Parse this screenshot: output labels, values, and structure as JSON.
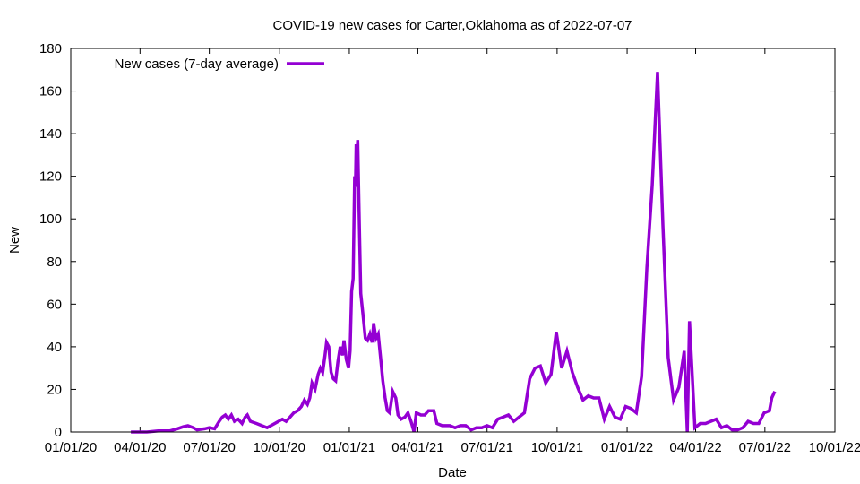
{
  "chart_data": {
    "type": "line",
    "title": "COVID-19 new cases for Carter,Oklahoma as of 2022-07-07",
    "xlabel": "Date",
    "ylabel": "New",
    "xlim": [
      "2020-01-01",
      "2022-10-01"
    ],
    "ylim": [
      0,
      180
    ],
    "x_ticks": [
      "01/01/20",
      "04/01/20",
      "07/01/20",
      "10/01/20",
      "01/01/21",
      "04/01/21",
      "07/01/21",
      "10/01/21",
      "01/01/22",
      "04/01/22",
      "07/01/22",
      "10/01/22"
    ],
    "y_ticks": [
      0,
      20,
      40,
      60,
      80,
      100,
      120,
      140,
      160,
      180
    ],
    "grid": false,
    "legend_position": "top-left",
    "series": [
      {
        "name": "New cases (7-day average)",
        "color": "#9400d3",
        "points": [
          [
            "2020-03-20",
            0
          ],
          [
            "2020-04-10",
            0
          ],
          [
            "2020-04-25",
            0.5
          ],
          [
            "2020-05-10",
            0.5
          ],
          [
            "2020-05-20",
            1.5
          ],
          [
            "2020-05-28",
            2.5
          ],
          [
            "2020-06-03",
            3
          ],
          [
            "2020-06-10",
            2
          ],
          [
            "2020-06-15",
            1
          ],
          [
            "2020-06-25",
            1.5
          ],
          [
            "2020-07-01",
            2
          ],
          [
            "2020-07-08",
            1.5
          ],
          [
            "2020-07-14",
            5
          ],
          [
            "2020-07-18",
            7
          ],
          [
            "2020-07-22",
            8
          ],
          [
            "2020-07-26",
            6
          ],
          [
            "2020-07-30",
            8
          ],
          [
            "2020-08-03",
            5
          ],
          [
            "2020-08-08",
            6
          ],
          [
            "2020-08-13",
            4
          ],
          [
            "2020-08-17",
            7
          ],
          [
            "2020-08-20",
            8
          ],
          [
            "2020-08-24",
            5
          ],
          [
            "2020-09-01",
            4
          ],
          [
            "2020-09-08",
            3
          ],
          [
            "2020-09-15",
            2
          ],
          [
            "2020-09-20",
            3
          ],
          [
            "2020-09-25",
            4
          ],
          [
            "2020-09-30",
            5
          ],
          [
            "2020-10-05",
            6
          ],
          [
            "2020-10-10",
            5
          ],
          [
            "2020-10-15",
            7
          ],
          [
            "2020-10-20",
            9
          ],
          [
            "2020-10-25",
            10
          ],
          [
            "2020-10-30",
            12
          ],
          [
            "2020-11-03",
            15
          ],
          [
            "2020-11-07",
            13
          ],
          [
            "2020-11-10",
            16
          ],
          [
            "2020-11-13",
            23
          ],
          [
            "2020-11-17",
            20
          ],
          [
            "2020-11-21",
            27
          ],
          [
            "2020-11-24",
            30
          ],
          [
            "2020-11-27",
            28
          ],
          [
            "2020-11-30",
            36
          ],
          [
            "2020-12-02",
            42
          ],
          [
            "2020-12-05",
            40
          ],
          [
            "2020-12-08",
            28
          ],
          [
            "2020-12-11",
            25
          ],
          [
            "2020-12-14",
            24
          ],
          [
            "2020-12-17",
            33
          ],
          [
            "2020-12-20",
            40
          ],
          [
            "2020-12-23",
            36
          ],
          [
            "2020-12-25",
            43
          ],
          [
            "2020-12-28",
            34
          ],
          [
            "2020-12-31",
            30
          ],
          [
            "2021-01-02",
            38
          ],
          [
            "2021-01-04",
            66
          ],
          [
            "2021-01-06",
            72
          ],
          [
            "2021-01-08",
            120
          ],
          [
            "2021-01-09",
            115
          ],
          [
            "2021-01-10",
            135
          ],
          [
            "2021-01-11",
            130
          ],
          [
            "2021-01-12",
            137
          ],
          [
            "2021-01-14",
            100
          ],
          [
            "2021-01-16",
            65
          ],
          [
            "2021-01-19",
            55
          ],
          [
            "2021-01-22",
            44
          ],
          [
            "2021-01-25",
            43
          ],
          [
            "2021-01-28",
            46
          ],
          [
            "2021-01-31",
            42
          ],
          [
            "2021-02-02",
            51
          ],
          [
            "2021-02-05",
            44
          ],
          [
            "2021-02-08",
            46
          ],
          [
            "2021-02-11",
            35
          ],
          [
            "2021-02-14",
            24
          ],
          [
            "2021-02-17",
            16
          ],
          [
            "2021-02-20",
            10
          ],
          [
            "2021-02-23",
            9
          ],
          [
            "2021-02-27",
            19
          ],
          [
            "2021-03-03",
            16
          ],
          [
            "2021-03-06",
            8
          ],
          [
            "2021-03-10",
            6
          ],
          [
            "2021-03-15",
            7
          ],
          [
            "2021-03-19",
            9
          ],
          [
            "2021-03-23",
            5
          ],
          [
            "2021-03-27",
            0
          ],
          [
            "2021-03-30",
            9
          ],
          [
            "2021-04-05",
            8
          ],
          [
            "2021-04-10",
            8
          ],
          [
            "2021-04-15",
            10
          ],
          [
            "2021-04-22",
            10
          ],
          [
            "2021-04-26",
            4
          ],
          [
            "2021-05-03",
            3
          ],
          [
            "2021-05-13",
            3
          ],
          [
            "2021-05-20",
            2
          ],
          [
            "2021-05-27",
            3
          ],
          [
            "2021-06-03",
            3
          ],
          [
            "2021-06-10",
            1
          ],
          [
            "2021-06-17",
            2
          ],
          [
            "2021-06-24",
            2
          ],
          [
            "2021-07-01",
            3
          ],
          [
            "2021-07-08",
            2
          ],
          [
            "2021-07-15",
            6
          ],
          [
            "2021-07-22",
            7
          ],
          [
            "2021-07-29",
            8
          ],
          [
            "2021-08-05",
            5
          ],
          [
            "2021-08-12",
            7
          ],
          [
            "2021-08-19",
            9
          ],
          [
            "2021-08-26",
            25
          ],
          [
            "2021-09-02",
            30
          ],
          [
            "2021-09-09",
            31
          ],
          [
            "2021-09-16",
            23
          ],
          [
            "2021-09-23",
            27
          ],
          [
            "2021-09-30",
            47
          ],
          [
            "2021-10-07",
            30
          ],
          [
            "2021-10-14",
            38
          ],
          [
            "2021-10-21",
            28
          ],
          [
            "2021-10-28",
            21
          ],
          [
            "2021-11-04",
            15
          ],
          [
            "2021-11-11",
            17
          ],
          [
            "2021-11-18",
            16
          ],
          [
            "2021-11-25",
            16
          ],
          [
            "2021-12-02",
            6
          ],
          [
            "2021-12-09",
            12
          ],
          [
            "2021-12-16",
            7
          ],
          [
            "2021-12-23",
            6
          ],
          [
            "2021-12-30",
            12
          ],
          [
            "2022-01-06",
            11
          ],
          [
            "2022-01-13",
            9
          ],
          [
            "2022-01-20",
            26
          ],
          [
            "2022-01-27",
            77
          ],
          [
            "2022-02-03",
            116
          ],
          [
            "2022-02-10",
            169
          ],
          [
            "2022-02-17",
            97
          ],
          [
            "2022-02-24",
            35
          ],
          [
            "2022-03-03",
            15
          ],
          [
            "2022-03-10",
            21
          ],
          [
            "2022-03-17",
            38
          ],
          [
            "2022-03-21",
            0
          ],
          [
            "2022-03-24",
            52
          ],
          [
            "2022-03-31",
            2
          ],
          [
            "2022-04-07",
            4
          ],
          [
            "2022-04-14",
            4
          ],
          [
            "2022-04-21",
            5
          ],
          [
            "2022-04-28",
            6
          ],
          [
            "2022-05-05",
            2
          ],
          [
            "2022-05-12",
            3
          ],
          [
            "2022-05-19",
            1
          ],
          [
            "2022-05-26",
            1
          ],
          [
            "2022-06-02",
            2
          ],
          [
            "2022-06-09",
            5
          ],
          [
            "2022-06-16",
            4
          ],
          [
            "2022-06-23",
            4
          ],
          [
            "2022-06-30",
            9
          ],
          [
            "2022-07-07",
            10
          ],
          [
            "2022-07-10",
            16
          ],
          [
            "2022-07-14",
            19
          ]
        ]
      }
    ]
  }
}
